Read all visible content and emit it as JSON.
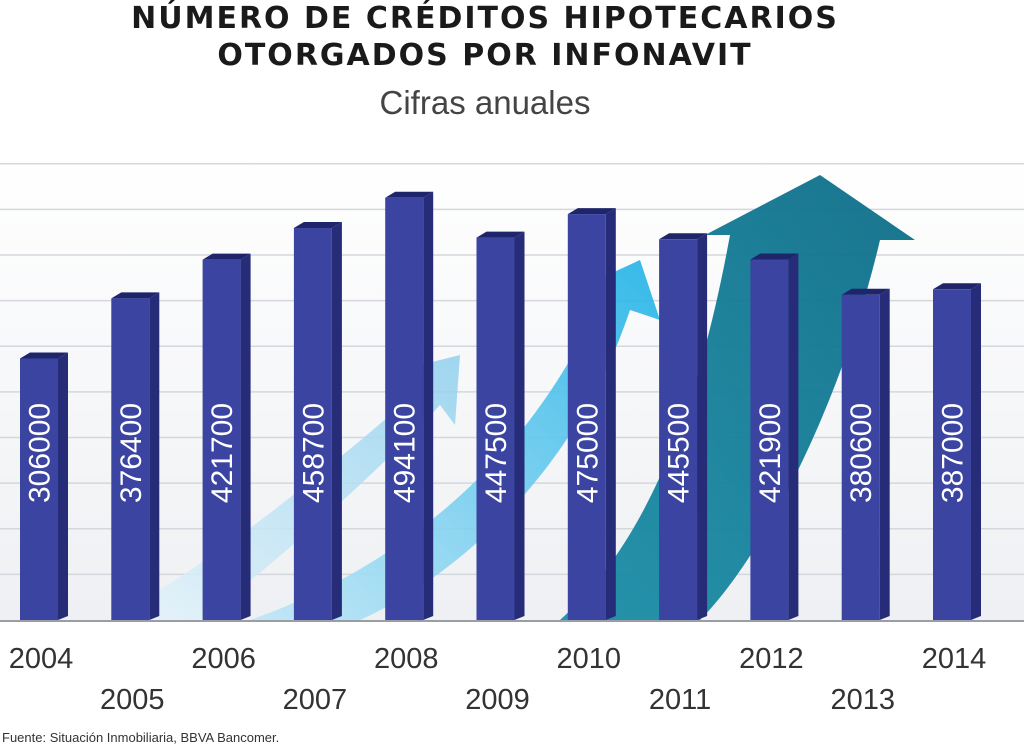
{
  "chart_data": {
    "type": "bar",
    "title": "NÚMERO DE CRÉDITOS HIPOTECARIOS",
    "title_line2": "OTORGADOS POR INFONAVIT",
    "subtitle": "Cifras anuales",
    "categories": [
      "2004",
      "2005",
      "2006",
      "2007",
      "2008",
      "2009",
      "2010",
      "2011",
      "2012",
      "2013",
      "2014"
    ],
    "values": [
      306000,
      376400,
      421700,
      458700,
      494100,
      447500,
      475000,
      445500,
      421900,
      380600,
      387000
    ],
    "value_labels": [
      "306000",
      "376400",
      "421700",
      "458700",
      "494100",
      "447500",
      "475000",
      "445500",
      "421900",
      "380600",
      "387000"
    ],
    "ylim": [
      0,
      550000
    ],
    "grid": true,
    "bar_color": "#3b44a0"
  },
  "source": "Fuente: Situación Inmobiliaria, BBVA Bancomer."
}
